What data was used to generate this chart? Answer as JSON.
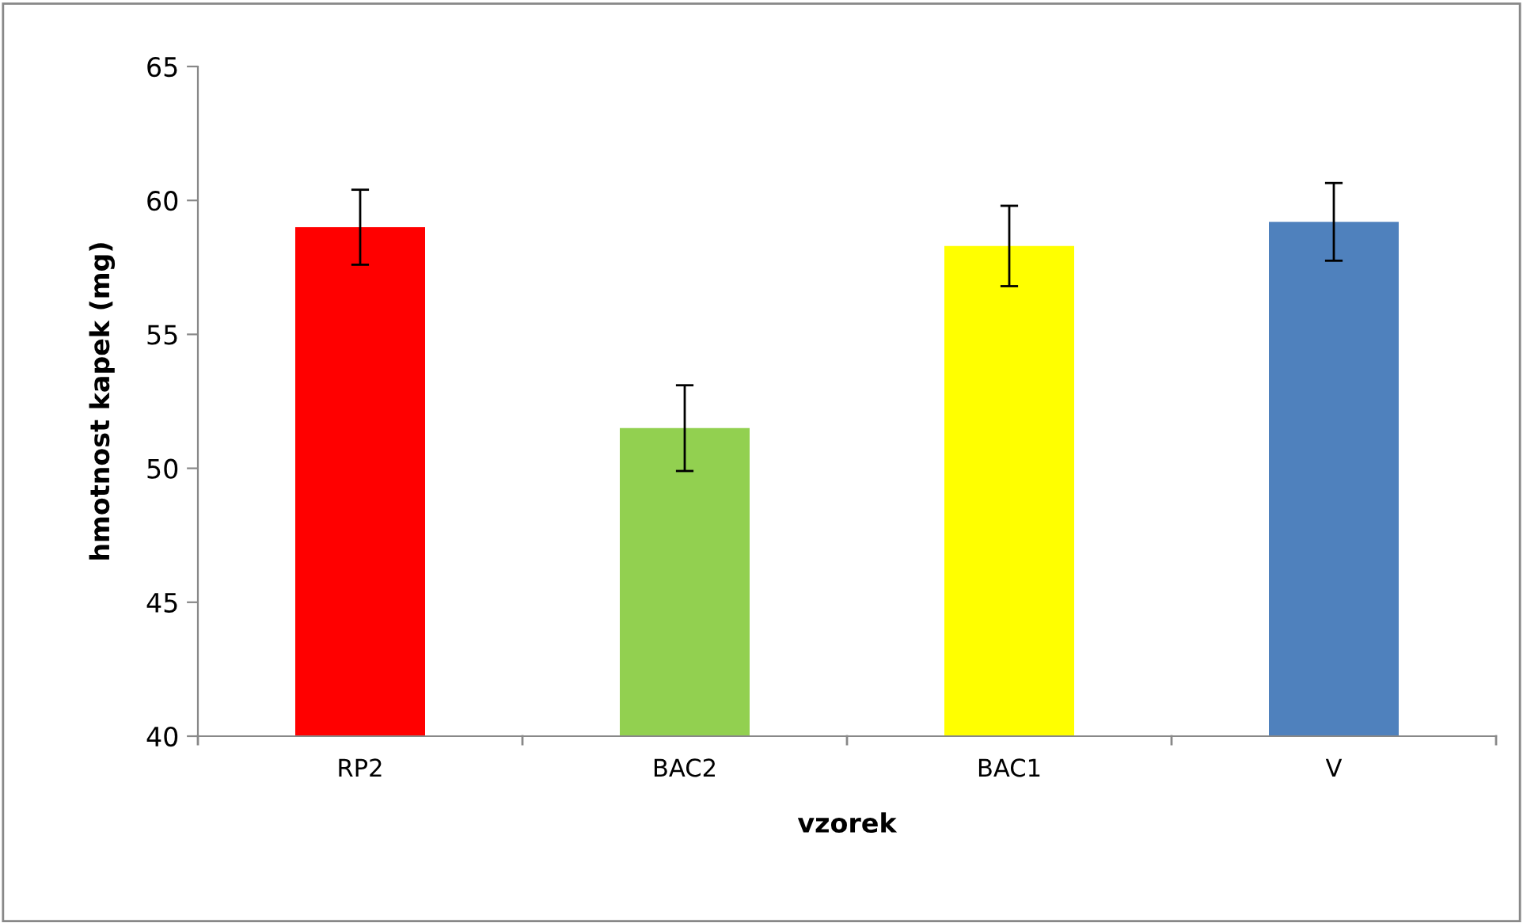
{
  "chart_data": {
    "type": "bar",
    "xlabel": "vzorek",
    "ylabel": "hmotnost kapek (mg)",
    "categories": [
      "RP2",
      "BAC2",
      "BAC1",
      "V"
    ],
    "values": [
      59.0,
      51.5,
      58.3,
      59.2
    ],
    "colors": [
      "#ff0000",
      "#92d050",
      "#ffff00",
      "#4f81bd"
    ],
    "errors": [
      1.4,
      1.6,
      1.5,
      1.45
    ],
    "ylim": [
      40,
      65
    ],
    "yticks": [
      40,
      45,
      50,
      55,
      60,
      65
    ],
    "grid": false,
    "legend": false
  }
}
